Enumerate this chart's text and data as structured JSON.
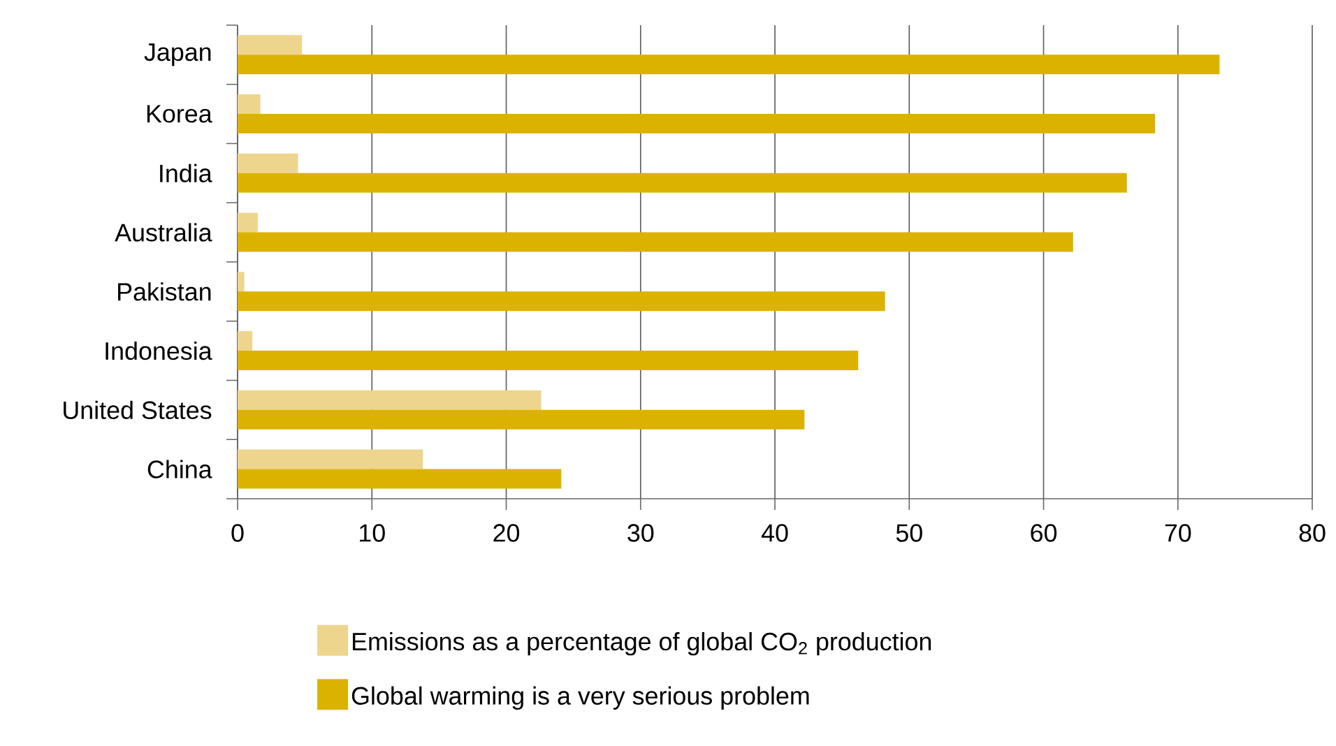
{
  "chart_data": {
    "type": "bar",
    "orientation": "horizontal",
    "categories": [
      "Japan",
      "Korea",
      "India",
      "Australia",
      "Pakistan",
      "Indonesia",
      "United States",
      "China"
    ],
    "series": [
      {
        "name": "Emissions as a percentage of global CO$_{2}$ production",
        "color": "#eed58e",
        "values": [
          4.8,
          1.7,
          4.5,
          1.5,
          0.5,
          1.1,
          22.6,
          13.8
        ]
      },
      {
        "name": "Global warming is a very serious problem",
        "color": "#dcb200",
        "values": [
          73.1,
          68.3,
          66.2,
          62.2,
          48.2,
          46.2,
          42.2,
          24.1
        ]
      }
    ],
    "xlim": [
      0,
      80
    ],
    "xticks": [
      0,
      10,
      20,
      30,
      40,
      50,
      60,
      70,
      80
    ],
    "grid": "x",
    "legend": "bottom"
  }
}
